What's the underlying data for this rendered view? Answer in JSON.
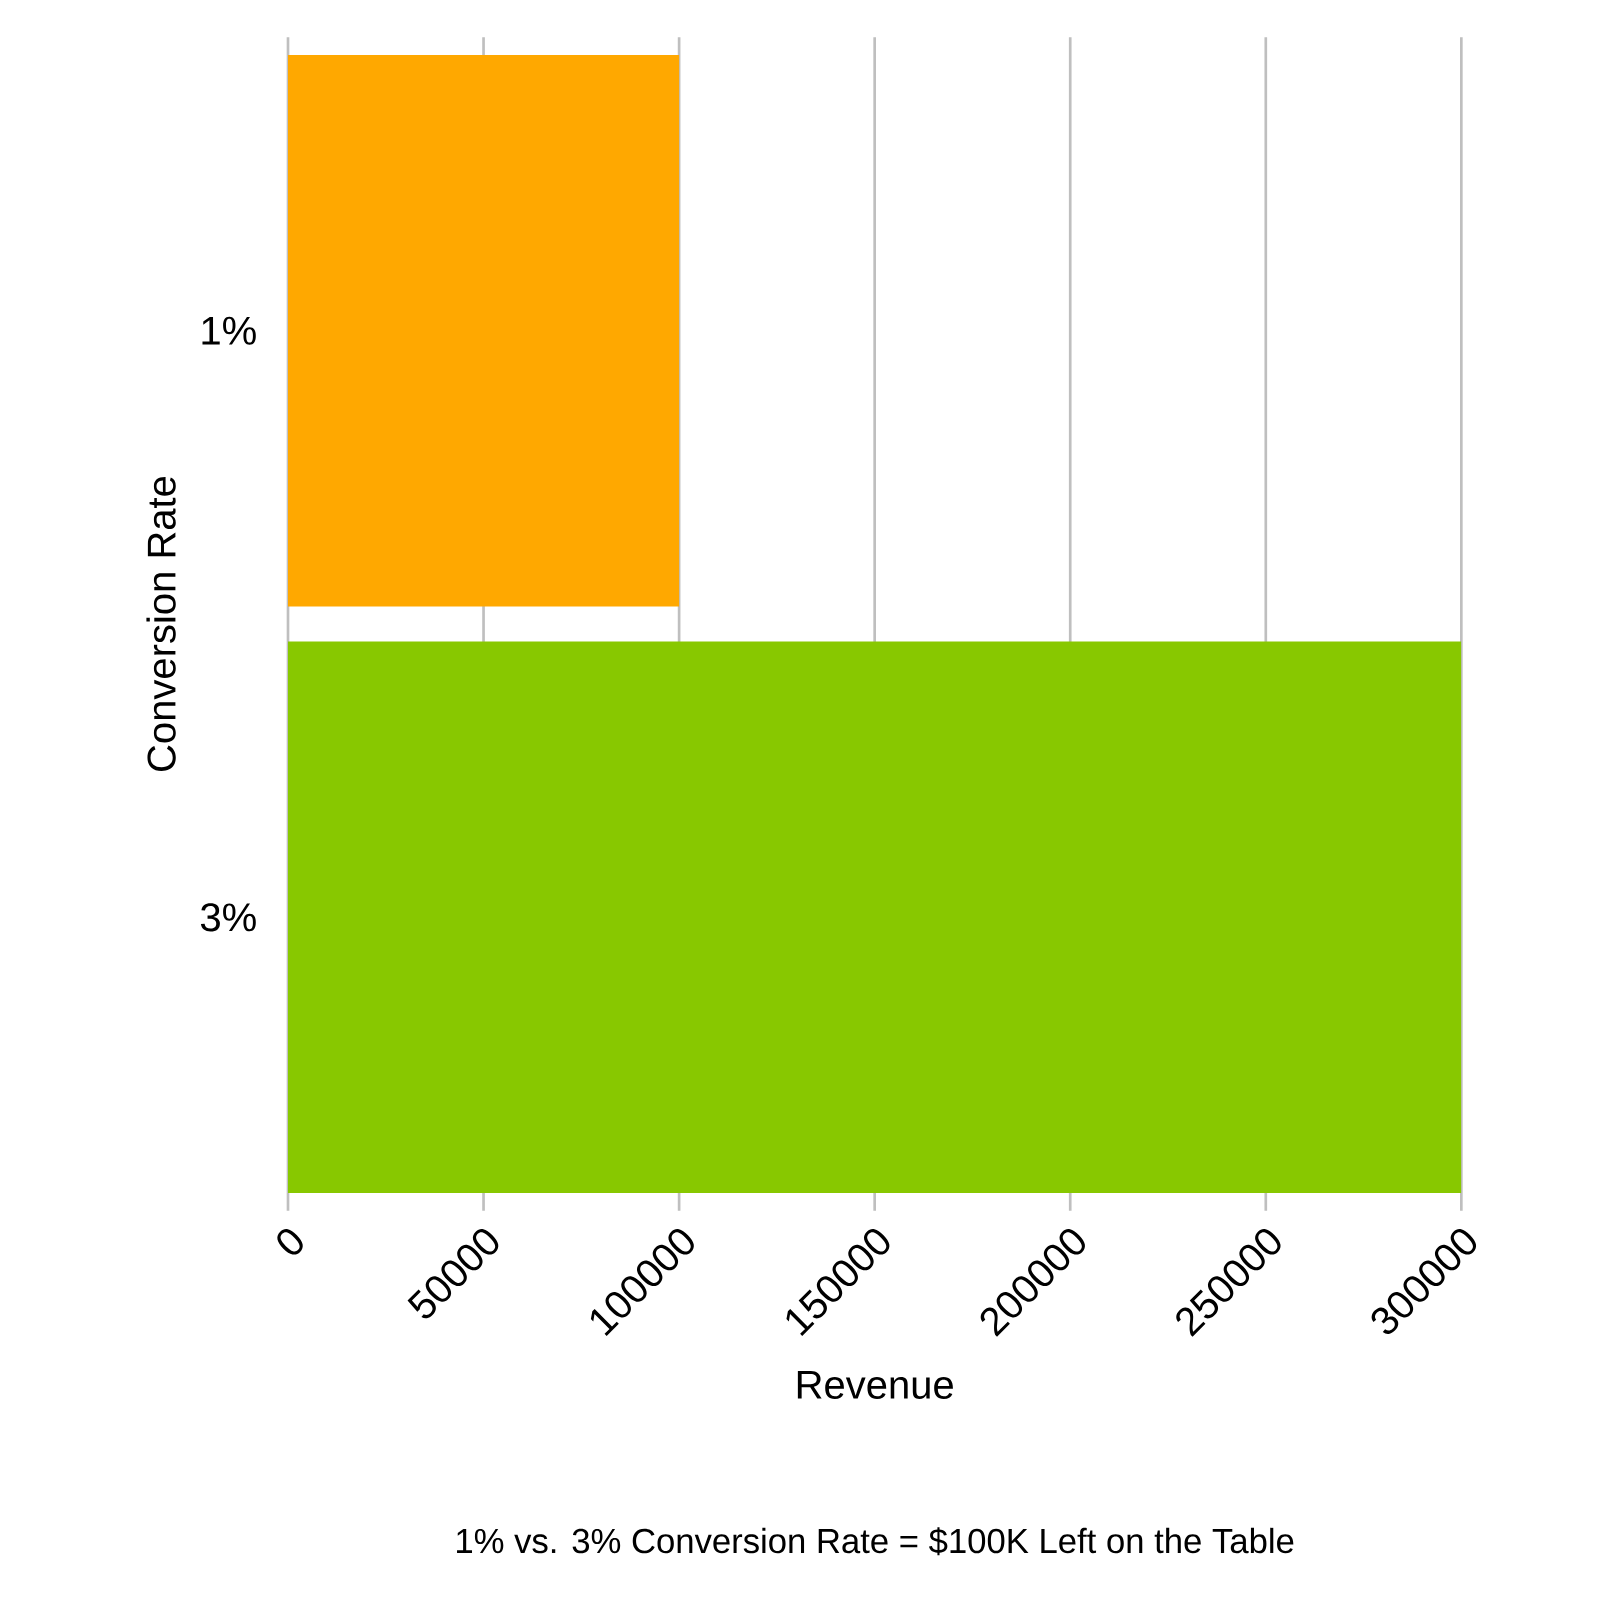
{
  "chart_data": {
    "type": "bar",
    "orientation": "horizontal",
    "categories": [
      "1%",
      "3%"
    ],
    "values": [
      100000,
      300000
    ],
    "colors": [
      "#ffa800",
      "#88c800"
    ],
    "xlim": [
      0,
      300000
    ],
    "xticks": [
      0,
      50000,
      100000,
      150000,
      200000,
      250000,
      300000
    ],
    "xlabel": "Revenue",
    "ylabel": "Conversion Rate",
    "grid": "x",
    "annotations": [
      "1% vs. 3% Conversion Rate = $100K Left on the Table"
    ]
  }
}
